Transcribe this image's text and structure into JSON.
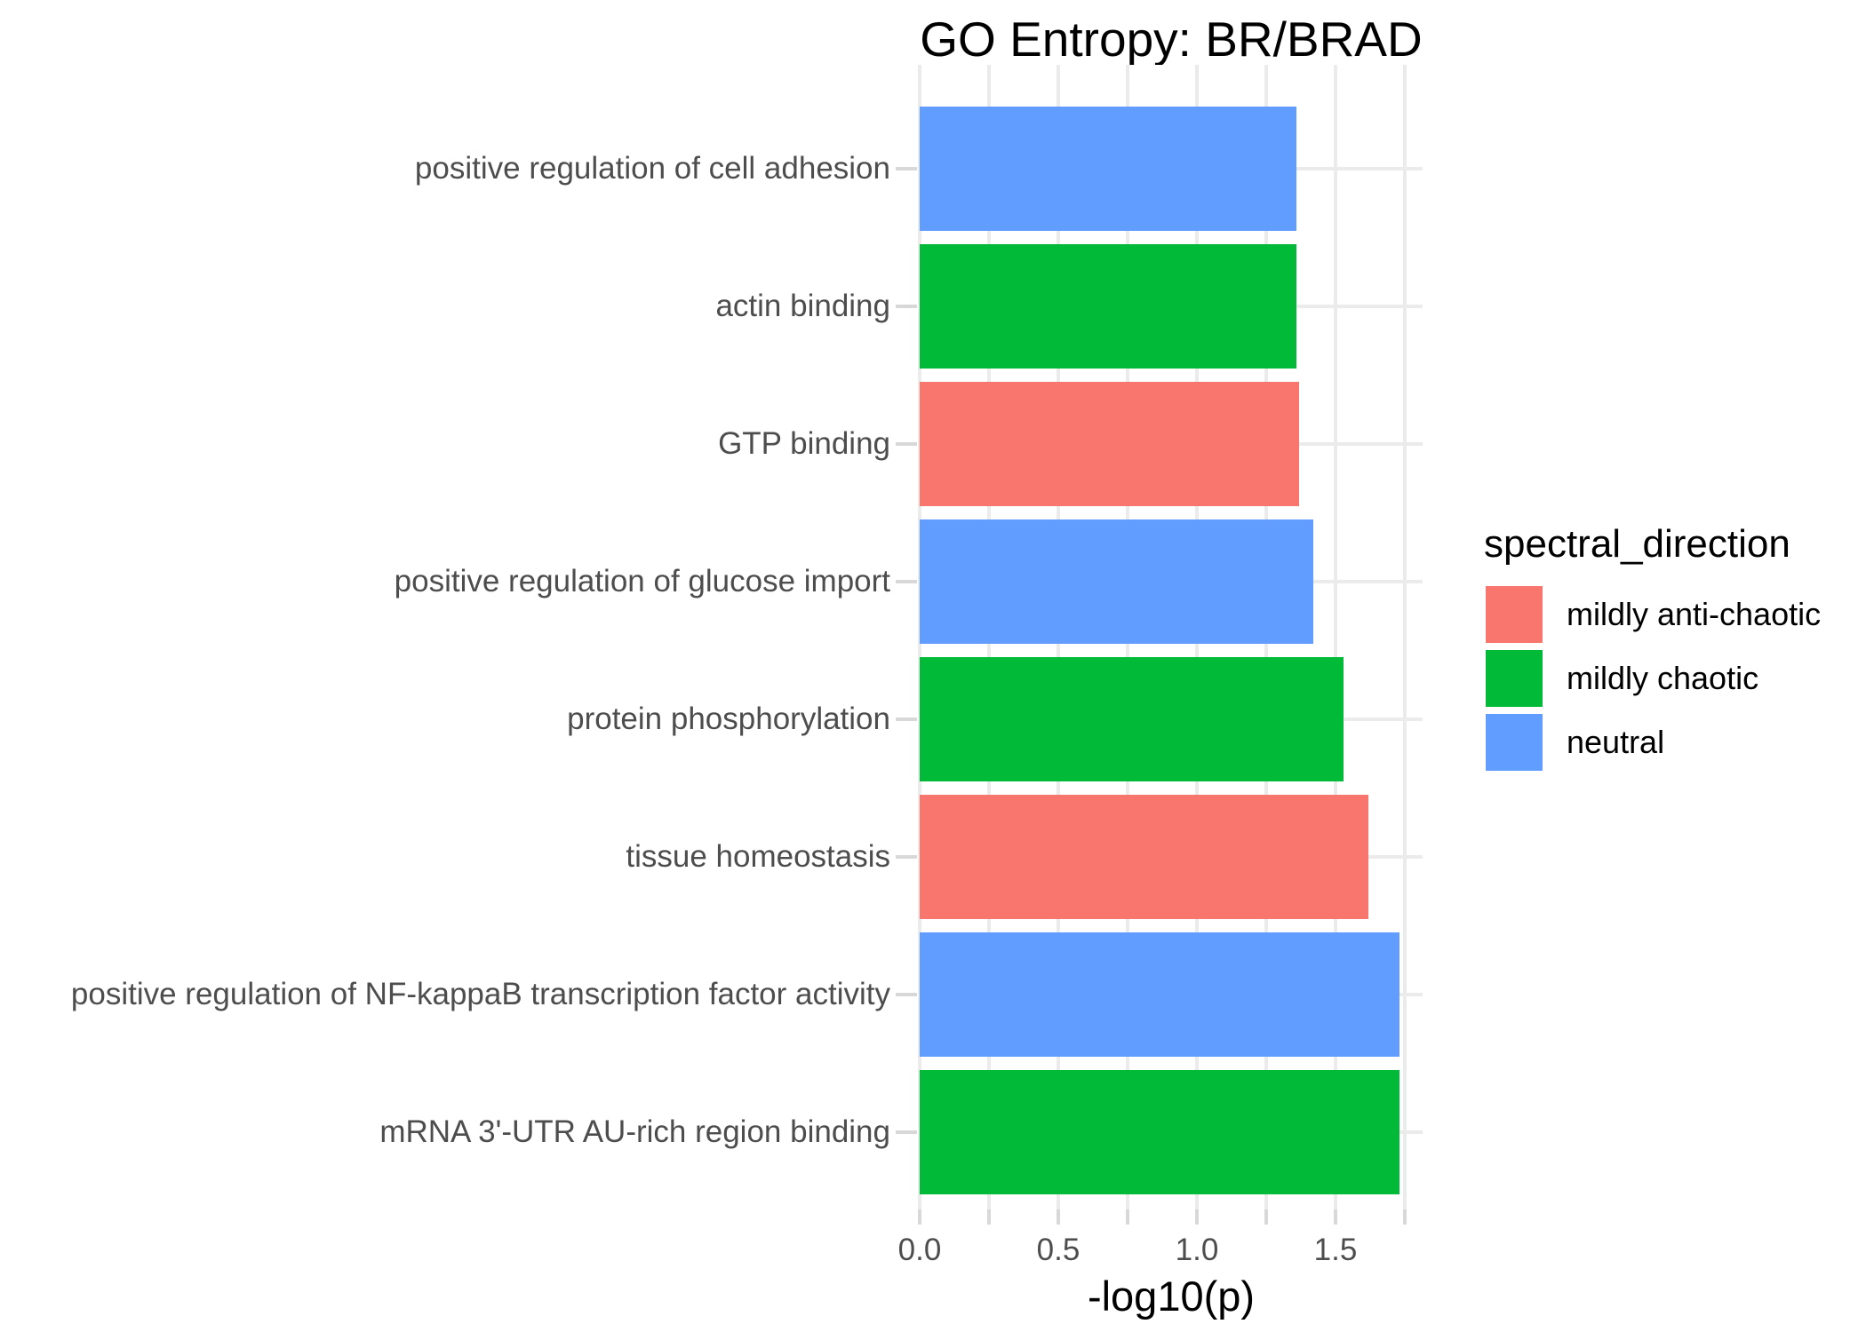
{
  "title": "GO Entropy: BR/BRAD",
  "chart_data": {
    "type": "bar",
    "orientation": "horizontal",
    "title": "GO Entropy: BR/BRAD",
    "xlabel": "-log10(p)",
    "ylabel": "",
    "grid": true,
    "xlim": [
      0,
      1.81
    ],
    "x_tick_labels": [
      "0.0",
      "0.5",
      "1.0",
      "1.5"
    ],
    "x_tick_values": [
      0,
      0.5,
      1.0,
      1.5
    ],
    "x_minor_step": 0.25,
    "categories": [
      "positive regulation of cell adhesion",
      "actin binding",
      "GTP binding",
      "positive regulation of glucose import",
      "protein phosphorylation",
      "tissue homeostasis",
      "positive regulation of NF-kappaB transcription factor activity",
      "mRNA 3'-UTR AU-rich region binding"
    ],
    "values": [
      1.36,
      1.36,
      1.37,
      1.42,
      1.53,
      1.62,
      1.73,
      1.73
    ],
    "groups": [
      "neutral",
      "mildly chaotic",
      "mildly anti-chaotic",
      "neutral",
      "mildly chaotic",
      "mildly anti-chaotic",
      "neutral",
      "mildly chaotic"
    ],
    "colors": {
      "mildly anti-chaotic": "#F8766D",
      "mildly chaotic": "#00BA38",
      "neutral": "#619CFF"
    },
    "legend": {
      "title": "spectral_direction",
      "position": "right",
      "entries": [
        {
          "label": "mildly anti-chaotic",
          "color": "#F8766D"
        },
        {
          "label": "mildly chaotic",
          "color": "#00BA38"
        },
        {
          "label": "neutral",
          "color": "#619CFF"
        }
      ]
    },
    "style": {
      "grid_color": "#EBEBEB",
      "tick_color": "#D8D8D8",
      "axis_text_color": "#4D4D4D",
      "title_color": "#000000"
    }
  }
}
